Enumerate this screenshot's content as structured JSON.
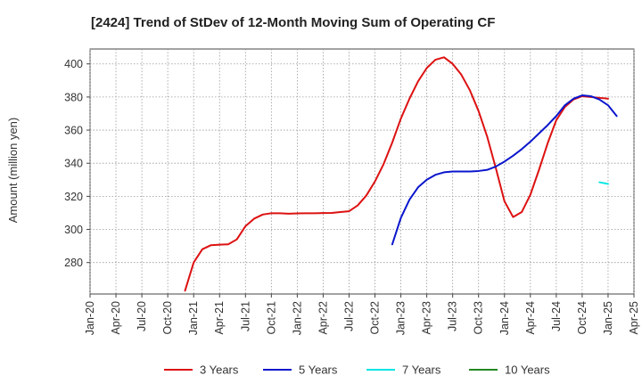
{
  "chart_data": {
    "type": "line",
    "title": "[2424]  Trend of StDev of 12-Month Moving Sum of Operating CF",
    "xlabel": "",
    "ylabel": "Amount (million yen)",
    "ylim": [
      261,
      409
    ],
    "yticks": [
      280,
      300,
      320,
      340,
      360,
      380,
      400
    ],
    "xticks": [
      "Jan-20",
      "Apr-20",
      "Jul-20",
      "Oct-20",
      "Jan-21",
      "Apr-21",
      "Jul-21",
      "Oct-21",
      "Jan-22",
      "Apr-22",
      "Jul-22",
      "Oct-22",
      "Jan-23",
      "Apr-23",
      "Jul-23",
      "Oct-23",
      "Jan-24",
      "Apr-24",
      "Jul-24",
      "Oct-24",
      "Jan-25",
      "Apr-25"
    ],
    "grid": true,
    "legend_position": "bottom",
    "series": [
      {
        "name": "3 Years",
        "color": "#dd1111",
        "points": [
          [
            "Dec-20",
            263
          ],
          [
            "Jan-21",
            280
          ],
          [
            "Feb-21",
            288
          ],
          [
            "Mar-21",
            290.5
          ],
          [
            "Apr-21",
            290.8
          ],
          [
            "May-21",
            291
          ],
          [
            "Jun-21",
            294
          ],
          [
            "Jul-21",
            302
          ],
          [
            "Aug-21",
            306.5
          ],
          [
            "Sep-21",
            309
          ],
          [
            "Oct-21",
            309.8
          ],
          [
            "Nov-21",
            309.8
          ],
          [
            "Dec-21",
            309.5
          ],
          [
            "Jan-22",
            309.7
          ],
          [
            "Feb-22",
            309.8
          ],
          [
            "Mar-22",
            309.8
          ],
          [
            "Apr-22",
            309.9
          ],
          [
            "May-22",
            310
          ],
          [
            "Jun-22",
            310.5
          ],
          [
            "Jul-22",
            311
          ],
          [
            "Aug-22",
            314.5
          ],
          [
            "Sep-22",
            320.5
          ],
          [
            "Oct-22",
            329
          ],
          [
            "Nov-22",
            339.5
          ],
          [
            "Dec-22",
            352.5
          ],
          [
            "Jan-23",
            367
          ],
          [
            "Feb-23",
            379
          ],
          [
            "Mar-23",
            389.5
          ],
          [
            "Apr-23",
            397.5
          ],
          [
            "May-23",
            402.5
          ],
          [
            "Jun-23",
            404
          ],
          [
            "Jul-23",
            400
          ],
          [
            "Aug-23",
            393.5
          ],
          [
            "Sep-23",
            384
          ],
          [
            "Oct-23",
            371.5
          ],
          [
            "Nov-23",
            356
          ],
          [
            "Dec-23",
            337
          ],
          [
            "Jan-24",
            317
          ],
          [
            "Feb-24",
            307.5
          ],
          [
            "Mar-24",
            310.5
          ],
          [
            "Apr-24",
            321
          ],
          [
            "May-24",
            336
          ],
          [
            "Jun-24",
            352
          ],
          [
            "Jul-24",
            366
          ],
          [
            "Aug-24",
            374
          ],
          [
            "Sep-24",
            378.5
          ],
          [
            "Oct-24",
            380.5
          ],
          [
            "Nov-24",
            380
          ],
          [
            "Dec-24",
            379.5
          ],
          [
            "Jan-25",
            379
          ]
        ]
      },
      {
        "name": "5 Years",
        "color": "#0a16cc",
        "points": [
          [
            "Dec-22",
            291
          ],
          [
            "Jan-23",
            307
          ],
          [
            "Feb-23",
            318
          ],
          [
            "Mar-23",
            325.5
          ],
          [
            "Apr-23",
            330
          ],
          [
            "May-23",
            333
          ],
          [
            "Jun-23",
            334.5
          ],
          [
            "Jul-23",
            335
          ],
          [
            "Aug-23",
            335
          ],
          [
            "Sep-23",
            335
          ],
          [
            "Oct-23",
            335.3
          ],
          [
            "Nov-23",
            336
          ],
          [
            "Dec-23",
            338
          ],
          [
            "Jan-24",
            341
          ],
          [
            "Feb-24",
            344.5
          ],
          [
            "Mar-24",
            348.5
          ],
          [
            "Apr-24",
            353
          ],
          [
            "May-24",
            358
          ],
          [
            "Jun-24",
            363
          ],
          [
            "Jul-24",
            368.5
          ],
          [
            "Aug-24",
            375
          ],
          [
            "Sep-24",
            379
          ],
          [
            "Oct-24",
            381
          ],
          [
            "Nov-24",
            380.5
          ],
          [
            "Dec-24",
            378.5
          ],
          [
            "Jan-25",
            375
          ],
          [
            "Feb-25",
            368.5
          ]
        ]
      },
      {
        "name": "7 Years",
        "color": "#00e5e5",
        "points": [
          [
            "Dec-24",
            328.5
          ],
          [
            "Jan-25",
            327.5
          ]
        ]
      },
      {
        "name": "10 Years",
        "color": "#228822",
        "points": []
      }
    ]
  }
}
